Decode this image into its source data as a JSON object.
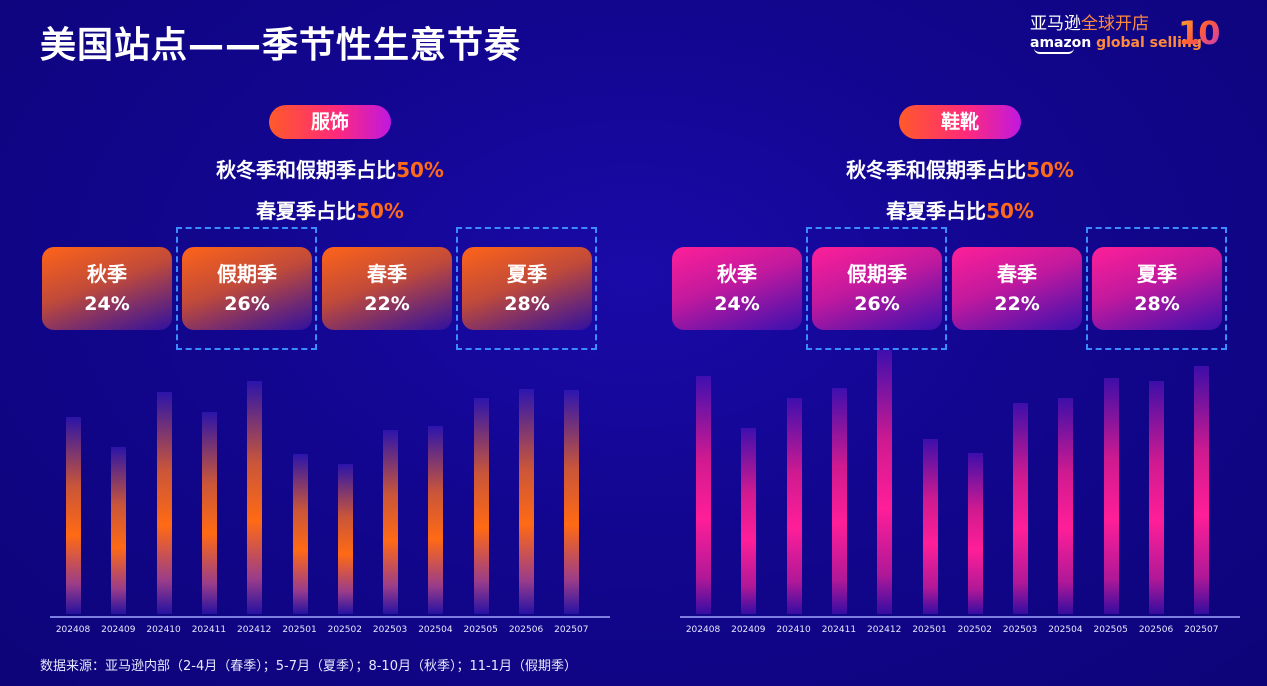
{
  "header": {
    "title": "美国站点——季节性生意节奏",
    "logo_cn_white": "亚马逊",
    "logo_cn_orange": "全球开店",
    "logo_en_white": "amazon",
    "logo_en_orange": "global selling",
    "anniversary_badge": "10"
  },
  "panels": [
    {
      "category": "服饰",
      "stat1_text": "秋冬季和假期季占比",
      "stat1_value": "50%",
      "stat2_text": "春夏季占比",
      "stat2_value": "50%",
      "seasons": [
        {
          "name": "秋季",
          "pct": "24%",
          "highlighted": false
        },
        {
          "name": "假期季",
          "pct": "26%",
          "highlighted": true
        },
        {
          "name": "春季",
          "pct": "22%",
          "highlighted": false
        },
        {
          "name": "夏季",
          "pct": "28%",
          "highlighted": true
        }
      ],
      "accent_color": "#ff6a14"
    },
    {
      "category": "鞋靴",
      "stat1_text": "秋冬季和假期季占比",
      "stat1_value": "50%",
      "stat2_text": "春夏季占比",
      "stat2_value": "50%",
      "seasons": [
        {
          "name": "秋季",
          "pct": "24%",
          "highlighted": false
        },
        {
          "name": "假期季",
          "pct": "26%",
          "highlighted": true
        },
        {
          "name": "春季",
          "pct": "22%",
          "highlighted": false
        },
        {
          "name": "夏季",
          "pct": "28%",
          "highlighted": true
        }
      ],
      "accent_color": "#ff1e98"
    }
  ],
  "footer": {
    "source": "数据来源：亚马逊内部（2-4月（春季）；5-7月（夏季）；8-10月（秋季）；11-1月（假期季）"
  },
  "chart_data": [
    {
      "type": "bar",
      "title": "服饰",
      "categories": [
        "202408",
        "202409",
        "202410",
        "202411",
        "202412",
        "202501",
        "202502",
        "202503",
        "202504",
        "202505",
        "202506",
        "202507"
      ],
      "values": [
        197,
        167,
        222,
        202,
        233,
        160,
        150,
        184,
        188,
        216,
        225,
        224
      ],
      "ylabel": "",
      "xlabel": "",
      "note": "relative bar heights in px (no y-axis shown)",
      "ylim": [
        0,
        260
      ],
      "grid": false,
      "color": "#ff6a14"
    },
    {
      "type": "bar",
      "title": "鞋靴",
      "categories": [
        "202408",
        "202409",
        "202410",
        "202411",
        "202412",
        "202501",
        "202502",
        "202503",
        "202504",
        "202505",
        "202506",
        "202507"
      ],
      "values": [
        238,
        186,
        216,
        226,
        264,
        175,
        161,
        211,
        216,
        236,
        233,
        248
      ],
      "ylabel": "",
      "xlabel": "",
      "note": "relative bar heights in px (no y-axis shown)",
      "ylim": [
        0,
        270
      ],
      "grid": false,
      "color": "#ff1e98"
    }
  ]
}
